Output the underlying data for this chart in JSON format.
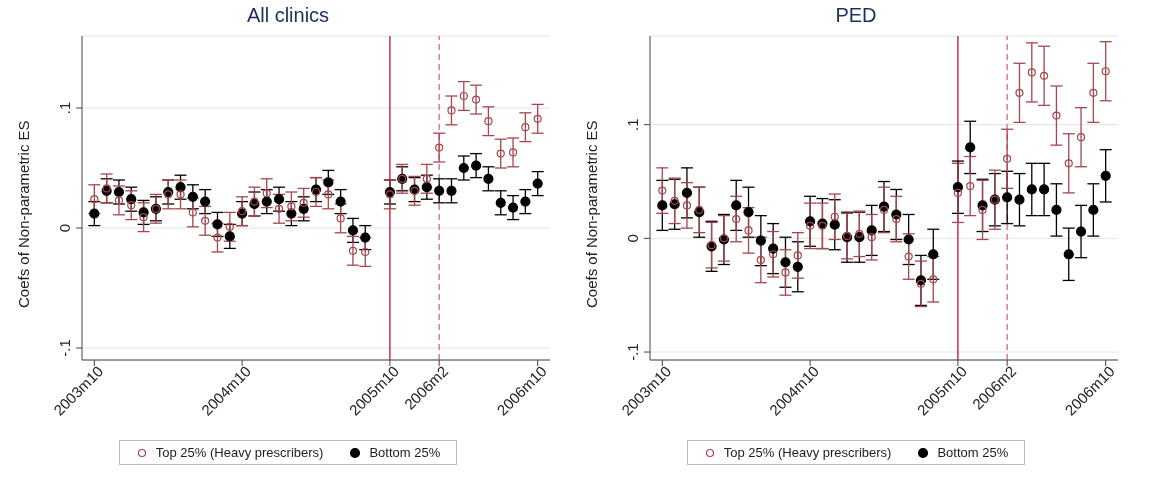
{
  "chart_data": [
    {
      "type": "scatter",
      "title": "All clinics",
      "ylabel": "Coefs of Non-parametric ES",
      "marker": "circle",
      "grid": "y",
      "legend": "bottom",
      "x": [
        "2003-10",
        "2003-11",
        "2003-12",
        "2004-01",
        "2004-02",
        "2004-03",
        "2004-04",
        "2004-05",
        "2004-06",
        "2004-07",
        "2004-08",
        "2004-09",
        "2004-10",
        "2004-11",
        "2004-12",
        "2005-01",
        "2005-02",
        "2005-03",
        "2005-04",
        "2005-05",
        "2005-06",
        "2005-07",
        "2005-08",
        "2005-10",
        "2005-11",
        "2005-12",
        "2006-01",
        "2006-02",
        "2006-03",
        "2006-04",
        "2006-05",
        "2006-06",
        "2006-07",
        "2006-08",
        "2006-09",
        "2006-10"
      ],
      "xlim": [
        "2003-09",
        "2006-11"
      ],
      "xticks": [
        {
          "value": "2003-10",
          "label": "2003m10"
        },
        {
          "value": "2004-10",
          "label": "2004m10"
        },
        {
          "value": "2005-10",
          "label": "2005m10"
        },
        {
          "value": "2006-02",
          "label": "2006m2"
        },
        {
          "value": "2006-10",
          "label": "2006m10"
        }
      ],
      "ylim": [
        -0.11,
        0.16
      ],
      "yticks": [
        {
          "value": -0.1,
          "label": "-.1"
        },
        {
          "value": 0,
          "label": "0"
        },
        {
          "value": 0.1,
          "label": ".1"
        }
      ],
      "ref_lines": [
        {
          "axis": "x",
          "value": "2005-10",
          "color": "#c8324a",
          "line_style": "solid"
        },
        {
          "axis": "x",
          "value": "2006-02",
          "color": "#e07a93",
          "line_style": "dashed"
        }
      ],
      "series": [
        {
          "name": "Top 25% (Heavy prescribers)",
          "color": "#a5474c",
          "values": [
            0.024,
            0.033,
            0.023,
            0.019,
            0.009,
            0.016,
            0.028,
            0.028,
            0.013,
            0.006,
            -0.008,
            0.001,
            0.014,
            0.022,
            0.029,
            0.016,
            0.018,
            0.021,
            0.03,
            0.028,
            0.008,
            -0.019,
            -0.02,
            0.028,
            0.041,
            0.031,
            0.041,
            0.067,
            0.098,
            0.11,
            0.107,
            0.089,
            0.062,
            0.063,
            0.084,
            0.091
          ],
          "errors": [
            0.012,
            0.012,
            0.012,
            0.012,
            0.012,
            0.012,
            0.012,
            0.012,
            0.012,
            0.012,
            0.012,
            0.012,
            0.012,
            0.012,
            0.012,
            0.012,
            0.012,
            0.012,
            0.012,
            0.012,
            0.012,
            0.012,
            0.012,
            0.012,
            0.012,
            0.012,
            0.012,
            0.012,
            0.012,
            0.012,
            0.012,
            0.012,
            0.012,
            0.012,
            0.012,
            0.012
          ]
        },
        {
          "name": "Bottom 25%",
          "color": "#000000",
          "values": [
            0.012,
            0.031,
            0.03,
            0.024,
            0.013,
            0.016,
            0.03,
            0.034,
            0.026,
            0.022,
            0.003,
            -0.007,
            0.012,
            0.02,
            0.022,
            0.024,
            0.012,
            0.016,
            0.032,
            0.038,
            0.022,
            -0.002,
            -0.008,
            0.03,
            0.041,
            0.032,
            0.034,
            0.031,
            0.031,
            0.05,
            0.052,
            0.041,
            0.021,
            0.017,
            0.022,
            0.037
          ],
          "errors": [
            0.01,
            0.01,
            0.01,
            0.01,
            0.01,
            0.01,
            0.01,
            0.01,
            0.01,
            0.01,
            0.01,
            0.01,
            0.01,
            0.01,
            0.01,
            0.01,
            0.01,
            0.01,
            0.01,
            0.01,
            0.01,
            0.01,
            0.01,
            0.01,
            0.01,
            0.01,
            0.01,
            0.01,
            0.01,
            0.01,
            0.01,
            0.01,
            0.01,
            0.01,
            0.01,
            0.01
          ]
        }
      ]
    },
    {
      "type": "scatter",
      "title": "PED",
      "ylabel": "Coefs of Non-parametric ES",
      "marker": "circle",
      "grid": "y",
      "legend": "bottom",
      "x": [
        "2003-10",
        "2003-11",
        "2003-12",
        "2004-01",
        "2004-02",
        "2004-03",
        "2004-04",
        "2004-05",
        "2004-06",
        "2004-07",
        "2004-08",
        "2004-09",
        "2004-10",
        "2004-11",
        "2004-12",
        "2005-01",
        "2005-02",
        "2005-03",
        "2005-04",
        "2005-05",
        "2005-06",
        "2005-07",
        "2005-08",
        "2005-10",
        "2005-11",
        "2005-12",
        "2006-01",
        "2006-02",
        "2006-03",
        "2006-04",
        "2006-05",
        "2006-06",
        "2006-07",
        "2006-08",
        "2006-09",
        "2006-10"
      ],
      "xlim": [
        "2003-09",
        "2006-11"
      ],
      "xticks": [
        {
          "value": "2003-10",
          "label": "2003m10"
        },
        {
          "value": "2004-10",
          "label": "2004m10"
        },
        {
          "value": "2005-10",
          "label": "2005m10"
        },
        {
          "value": "2006-02",
          "label": "2006m2"
        },
        {
          "value": "2006-10",
          "label": "2006m10"
        }
      ],
      "ylim": [
        -0.107,
        0.178
      ],
      "yticks": [
        {
          "value": -0.1,
          "label": "-.1"
        },
        {
          "value": 0,
          "label": "0"
        },
        {
          "value": 0.1,
          "label": ".1"
        }
      ],
      "ref_lines": [
        {
          "axis": "x",
          "value": "2005-10",
          "color": "#c8324a",
          "line_style": "solid"
        },
        {
          "axis": "x",
          "value": "2006-02",
          "color": "#e07a93",
          "line_style": "dashed"
        }
      ],
      "series": [
        {
          "name": "Top 25% (Heavy prescribers)",
          "color": "#a5474c",
          "values": [
            0.042,
            0.033,
            0.029,
            0.025,
            -0.006,
            0.0,
            0.017,
            0.007,
            -0.019,
            -0.014,
            -0.03,
            -0.015,
            0.011,
            0.011,
            0.019,
            0.002,
            0.004,
            0.001,
            0.025,
            0.017,
            -0.016,
            -0.04,
            -0.036,
            0.04,
            0.046,
            0.025,
            0.034,
            0.07,
            0.128,
            0.146,
            0.143,
            0.108,
            0.066,
            0.089,
            0.128,
            0.147
          ],
          "errors": [
            0.02,
            0.02,
            0.02,
            0.02,
            0.02,
            0.02,
            0.02,
            0.02,
            0.02,
            0.02,
            0.02,
            0.02,
            0.02,
            0.02,
            0.02,
            0.02,
            0.02,
            0.02,
            0.02,
            0.02,
            0.02,
            0.02,
            0.02,
            0.026,
            0.026,
            0.026,
            0.026,
            0.026,
            0.026,
            0.026,
            0.026,
            0.026,
            0.026,
            0.026,
            0.026,
            0.026
          ]
        },
        {
          "name": "Bottom 25%",
          "color": "#000000",
          "values": [
            0.029,
            0.03,
            0.04,
            0.023,
            -0.007,
            -0.001,
            0.029,
            0.023,
            -0.002,
            -0.009,
            -0.021,
            -0.025,
            0.015,
            0.013,
            0.012,
            0.001,
            0.001,
            0.007,
            0.028,
            0.021,
            -0.001,
            -0.037,
            -0.014,
            0.045,
            0.08,
            0.029,
            0.034,
            0.036,
            0.034,
            0.043,
            0.043,
            0.025,
            -0.014,
            0.006,
            0.025,
            0.055
          ],
          "errors": [
            0.022,
            0.022,
            0.022,
            0.022,
            0.022,
            0.022,
            0.022,
            0.022,
            0.022,
            0.022,
            0.022,
            0.022,
            0.022,
            0.022,
            0.022,
            0.022,
            0.022,
            0.022,
            0.022,
            0.022,
            0.022,
            0.022,
            0.022,
            0.023,
            0.023,
            0.023,
            0.023,
            0.023,
            0.023,
            0.023,
            0.023,
            0.023,
            0.023,
            0.023,
            0.023,
            0.023
          ]
        }
      ]
    }
  ]
}
